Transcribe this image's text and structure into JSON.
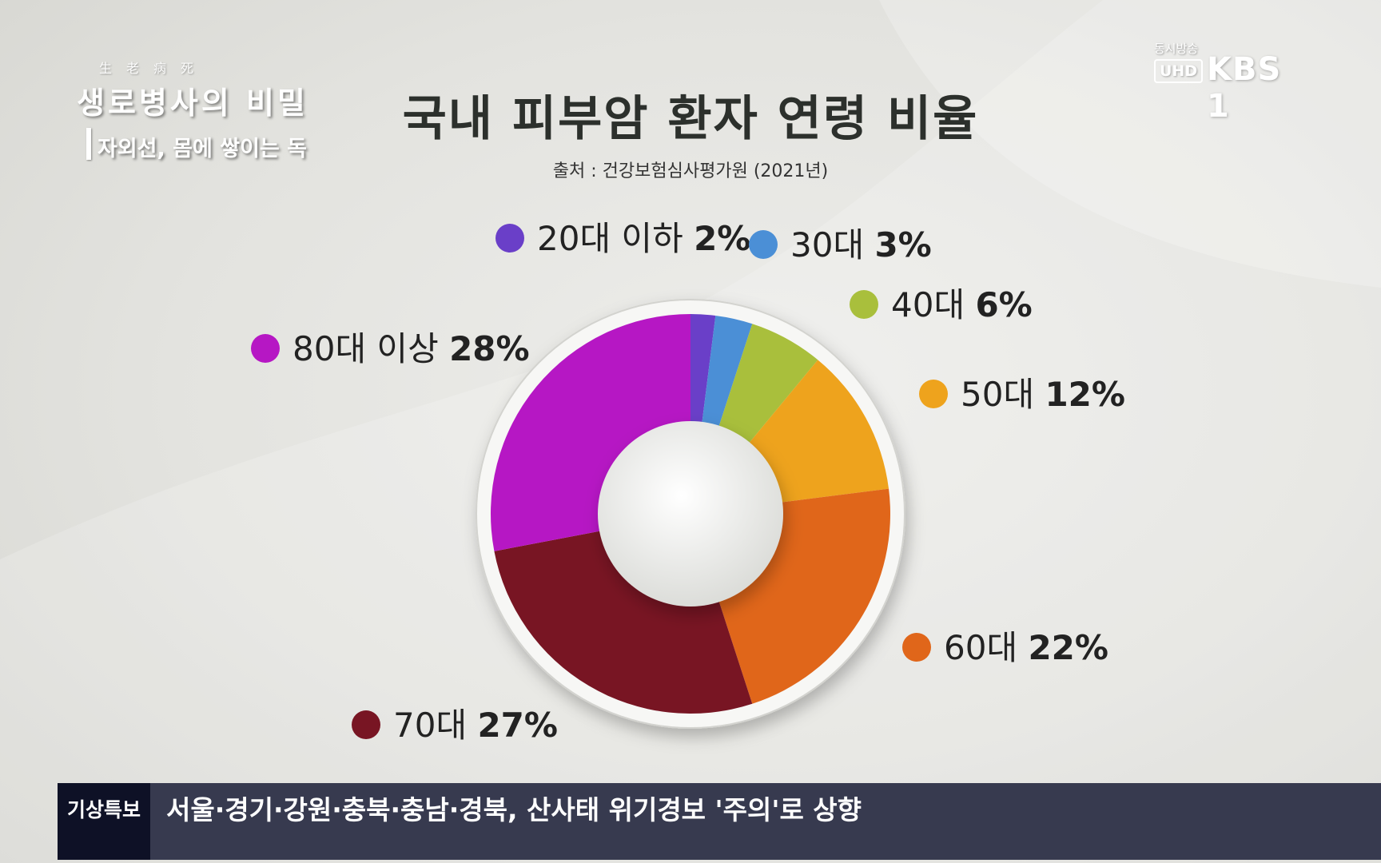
{
  "program": {
    "hanja": "生老病死",
    "title": "생로병사의 비밀",
    "subtitle": "자외선, 몸에 쌓이는 독"
  },
  "broadcaster": {
    "live_label": "동시방송",
    "uhd": "UHD",
    "channel": "KBS 1"
  },
  "ticker": {
    "label": "기상특보",
    "text": "서울·경기·강원·충북·충남·경북, 산사태 위기경보 '주의'로 상향"
  },
  "chart_data": {
    "type": "pie",
    "style": "donut",
    "title": "국내 피부암 환자 연령 비율",
    "source": "출처 : 건강보험심사평가원 (2021년)",
    "slices": [
      {
        "label": "20대 이하",
        "value": 2,
        "display": "2%",
        "color": "#6a3fc8"
      },
      {
        "label": "30대",
        "value": 3,
        "display": "3%",
        "color": "#4b8fd6"
      },
      {
        "label": "40대",
        "value": 6,
        "display": "6%",
        "color": "#a9bf3c"
      },
      {
        "label": "50대",
        "value": 12,
        "display": "12%",
        "color": "#eea31d"
      },
      {
        "label": "60대",
        "value": 22,
        "display": "22%",
        "color": "#e0661a"
      },
      {
        "label": "70대",
        "value": 27,
        "display": "27%",
        "color": "#781523"
      },
      {
        "label": "80대 이상",
        "value": 28,
        "display": "28%",
        "color": "#b617c4"
      }
    ]
  }
}
